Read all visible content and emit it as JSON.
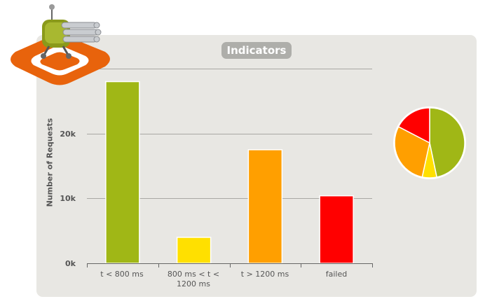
{
  "chart_data": {
    "type": "bar",
    "title": "Indicators",
    "ylabel": "Number of Requests",
    "xlabel": "",
    "categories": [
      "t < 800 ms",
      "800 ms < t < 1200 ms",
      "t > 1200 ms",
      "failed"
    ],
    "values": [
      28000,
      4000,
      17500,
      10400
    ],
    "colors": [
      "#a0b716",
      "#ffe000",
      "#ff9f00",
      "#ff0000"
    ],
    "ylim": [
      0,
      30000
    ],
    "yticks": [
      0,
      10000,
      20000
    ],
    "ytick_labels": [
      "0k",
      "10k",
      "20k"
    ],
    "grid": true,
    "legend": "none",
    "pie": {
      "values": [
        28000,
        4000,
        17500,
        10400
      ],
      "colors": [
        "#a0b716",
        "#ffe000",
        "#ff9f00",
        "#ff0000"
      ]
    }
  },
  "logo": {
    "name": "gatling-logo"
  }
}
